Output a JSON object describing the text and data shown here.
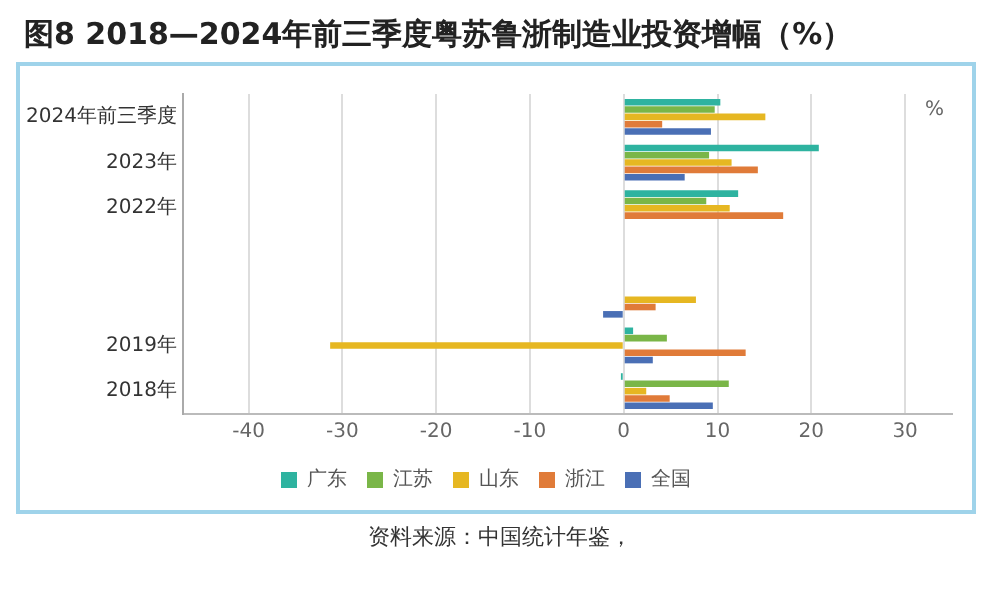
{
  "chart_data": {
    "type": "bar",
    "orientation": "horizontal",
    "title": "图8 2018—2024年前三季度粤苏鲁浙制造业投资增幅（%）",
    "categories": [
      "2024年前三季度",
      "2023年",
      "2022年",
      null,
      null,
      "2019年",
      "2018年"
    ],
    "series": [
      {
        "name": "广东",
        "color": "#2eb3a0",
        "values": [
          10.3,
          20.8,
          12.2,
          null,
          null,
          1.0,
          -0.3
        ]
      },
      {
        "name": "江苏",
        "color": "#7ab648",
        "values": [
          9.7,
          9.1,
          8.8,
          null,
          null,
          4.6,
          11.2
        ]
      },
      {
        "name": "山东",
        "color": "#e6b722",
        "values": [
          15.1,
          11.5,
          11.3,
          null,
          7.7,
          -31.3,
          2.4
        ]
      },
      {
        "name": "浙江",
        "color": "#e07b39",
        "values": [
          4.1,
          14.3,
          17.0,
          null,
          3.4,
          13.0,
          4.9
        ]
      },
      {
        "name": "全国",
        "color": "#4a6fb5",
        "values": [
          9.3,
          6.5,
          null,
          null,
          -2.2,
          3.1,
          9.5
        ]
      }
    ],
    "xlim": [
      -47,
      35
    ],
    "xticks": [
      -40,
      -30,
      -20,
      -10,
      0,
      10,
      20,
      30
    ],
    "grid": "x",
    "legend": "bottom",
    "annotations": [
      "%",
      "资料来源：中国统计年鉴，"
    ]
  }
}
